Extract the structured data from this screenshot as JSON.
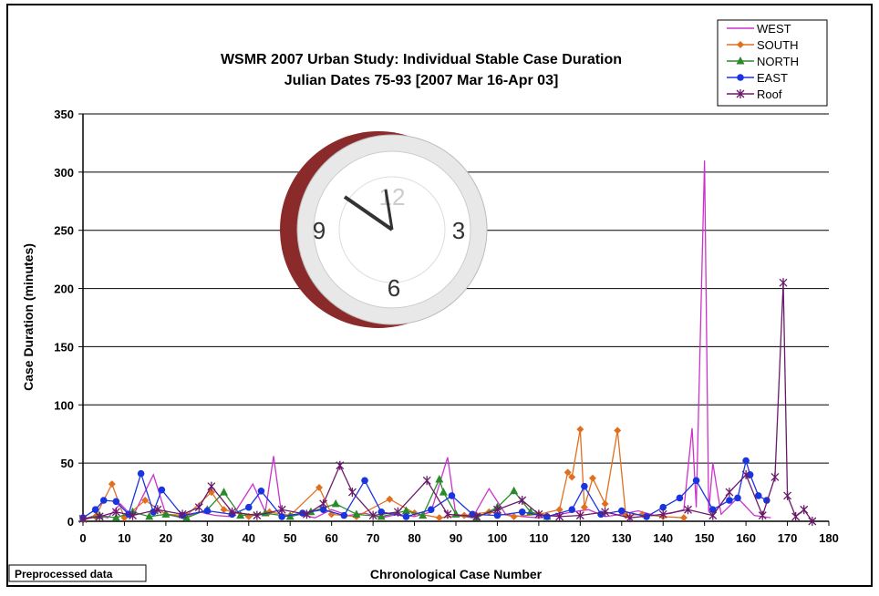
{
  "chart_data": {
    "type": "line",
    "title": "WSMR 2007 Urban Study:  Individual Stable Case Duration",
    "subtitle": "Julian Dates 75-93 [2007 Mar 16-Apr 03]",
    "x_label": "Chronological Case Number",
    "y_label": "Case Duration (minutes)",
    "annotation": "Preprocessed data",
    "xlim": [
      0,
      180
    ],
    "xticks": [
      0,
      10,
      20,
      30,
      40,
      50,
      60,
      70,
      80,
      90,
      100,
      110,
      120,
      130,
      140,
      150,
      160,
      170,
      180
    ],
    "ylim": [
      0,
      350
    ],
    "yticks": [
      0,
      50,
      100,
      150,
      200,
      250,
      300,
      350
    ],
    "grid": true,
    "legend": "top-right",
    "series": [
      {
        "name": "WEST",
        "color": "#cc33cc",
        "marker": "none",
        "x": [
          0,
          3,
          6,
          9,
          12,
          17,
          20,
          24,
          28,
          32,
          36,
          41,
          44,
          46,
          48,
          52,
          56,
          60,
          64,
          68,
          72,
          76,
          80,
          84,
          88,
          90,
          94,
          98,
          102,
          106,
          110,
          114,
          118,
          122,
          126,
          130,
          134,
          138,
          142,
          145,
          147,
          148,
          150,
          151,
          152,
          154,
          158,
          162,
          166
        ],
        "values": [
          2,
          5,
          3,
          15,
          4,
          40,
          6,
          3,
          8,
          5,
          4,
          32,
          8,
          56,
          4,
          6,
          3,
          10,
          5,
          7,
          3,
          6,
          4,
          8,
          55,
          5,
          3,
          28,
          6,
          4,
          3,
          5,
          8,
          10,
          4,
          6,
          9,
          5,
          7,
          10,
          80,
          12,
          310,
          8,
          50,
          6,
          20,
          5,
          3
        ]
      },
      {
        "name": "SOUTH",
        "color": "#e07020",
        "marker": "diamond",
        "x": [
          0,
          3,
          7,
          10,
          15,
          20,
          25,
          31,
          34,
          40,
          45,
          50,
          57,
          60,
          66,
          74,
          80,
          86,
          92,
          98,
          104,
          110,
          115,
          117,
          118,
          120,
          121,
          123,
          126,
          129,
          131,
          135,
          140,
          145
        ],
        "values": [
          1,
          4,
          32,
          3,
          18,
          6,
          5,
          25,
          10,
          4,
          8,
          5,
          29,
          6,
          4,
          19,
          7,
          3,
          5,
          8,
          4,
          6,
          10,
          42,
          38,
          79,
          12,
          37,
          15,
          78,
          5,
          6,
          4,
          3
        ]
      },
      {
        "name": "NORTH",
        "color": "#2a8a2a",
        "marker": "triangle",
        "x": [
          0,
          4,
          8,
          12,
          16,
          20,
          25,
          30,
          34,
          38,
          44,
          50,
          55,
          61,
          66,
          72,
          78,
          82,
          86,
          87,
          90,
          95,
          100,
          104,
          108,
          112
        ],
        "values": [
          2,
          5,
          3,
          8,
          4,
          6,
          3,
          10,
          25,
          5,
          7,
          4,
          8,
          15,
          6,
          4,
          9,
          5,
          36,
          25,
          6,
          3,
          12,
          26,
          8,
          4
        ]
      },
      {
        "name": "EAST",
        "color": "#1a35e0",
        "marker": "circle",
        "x": [
          0,
          3,
          5,
          8,
          11,
          14,
          17,
          19,
          24,
          30,
          36,
          40,
          43,
          48,
          53,
          58,
          63,
          68,
          72,
          78,
          84,
          89,
          94,
          100,
          106,
          112,
          118,
          121,
          125,
          130,
          136,
          140,
          144,
          148,
          152,
          156,
          158,
          160,
          161,
          163,
          165
        ],
        "values": [
          3,
          10,
          18,
          17,
          6,
          41,
          8,
          27,
          5,
          9,
          6,
          12,
          26,
          4,
          7,
          10,
          5,
          35,
          8,
          4,
          10,
          22,
          6,
          5,
          8,
          4,
          10,
          30,
          6,
          9,
          4,
          12,
          20,
          35,
          10,
          18,
          20,
          52,
          40,
          22,
          18
        ]
      },
      {
        "name": "Roof",
        "color": "#6a1a6a",
        "marker": "asterisk",
        "x": [
          0,
          4,
          8,
          12,
          18,
          24,
          28,
          31,
          36,
          42,
          48,
          54,
          58,
          62,
          65,
          70,
          76,
          83,
          88,
          95,
          100,
          106,
          110,
          115,
          120,
          126,
          132,
          140,
          146,
          152,
          156,
          160,
          164,
          167,
          169,
          170,
          172,
          174,
          176
        ],
        "values": [
          2,
          4,
          8,
          5,
          10,
          6,
          12,
          30,
          8,
          5,
          10,
          6,
          15,
          48,
          25,
          5,
          8,
          35,
          6,
          4,
          10,
          18,
          6,
          4,
          5,
          8,
          3,
          6,
          10,
          5,
          25,
          40,
          5,
          38,
          205,
          22,
          4,
          10,
          0
        ]
      }
    ]
  }
}
